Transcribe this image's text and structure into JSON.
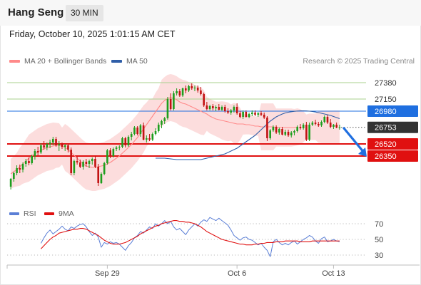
{
  "header": {
    "instrument": "Hang Seng",
    "timeframe": "30 MIN",
    "timestamp": "Friday, October 10, 2025 1:01:15 AM CET"
  },
  "legend": {
    "ma20_label": "MA 20 + Bollinger Bands",
    "ma50_label": "MA 50",
    "copyright": "Research © 2025 Trading Central",
    "rsi_label": "RSI",
    "rsi9_label": "9MA"
  },
  "colors": {
    "ma20": "#ff8a8a",
    "ma50": "#2f5ea8",
    "bollinger_fill": "#fcd7d7",
    "up_candle": "#1e9e1e",
    "down_candle": "#c21212",
    "support": "#e01010",
    "pivot": "#1f6fe0",
    "resistance": "#a9d18e",
    "last_price": "#333333",
    "rsi": "#5b7fd6",
    "rsi9": "#e01010"
  },
  "chart_data": [
    {
      "type": "candlestick",
      "y_range": [
        25820,
        27580
      ],
      "x_labels": [
        "Sep 29",
        "Oct 6",
        "Oct 13"
      ],
      "levels": [
        {
          "value": 27380,
          "kind": "resistance",
          "label": "27380"
        },
        {
          "value": 27150,
          "kind": "resistance",
          "label": "27150"
        },
        {
          "value": 26980,
          "kind": "pivot",
          "label": "26980"
        },
        {
          "value": 26753,
          "kind": "last",
          "label": "26753"
        },
        {
          "value": 26520,
          "kind": "support",
          "label": "26520"
        },
        {
          "value": 26350,
          "kind": "support",
          "label": "26350"
        }
      ],
      "arrow": {
        "from": 26740,
        "to": 26350,
        "direction": "down"
      },
      "candles": [
        [
          25920,
          26040,
          25880,
          26030
        ],
        [
          26030,
          26130,
          25990,
          26110
        ],
        [
          26110,
          26220,
          26080,
          26180
        ],
        [
          26180,
          26230,
          26110,
          26160
        ],
        [
          26160,
          26260,
          26120,
          26240
        ],
        [
          26240,
          26310,
          26200,
          26280
        ],
        [
          26280,
          26330,
          26220,
          26250
        ],
        [
          26250,
          26370,
          26230,
          26350
        ],
        [
          26350,
          26450,
          26300,
          26420
        ],
        [
          26420,
          26480,
          26360,
          26400
        ],
        [
          26400,
          26530,
          26380,
          26500
        ],
        [
          26500,
          26560,
          26440,
          26470
        ],
        [
          26470,
          26540,
          26430,
          26520
        ],
        [
          26520,
          26580,
          26460,
          26540
        ],
        [
          26540,
          26620,
          26500,
          26590
        ],
        [
          26590,
          26620,
          26480,
          26500
        ],
        [
          26500,
          26560,
          26420,
          26520
        ],
        [
          26520,
          26540,
          26450,
          26480
        ],
        [
          26480,
          26520,
          26420,
          26500
        ],
        [
          26500,
          26520,
          26400,
          26440
        ],
        [
          26440,
          26470,
          26080,
          26110
        ],
        [
          26110,
          26300,
          26080,
          26280
        ],
        [
          26280,
          26340,
          26230,
          26260
        ],
        [
          26260,
          26300,
          26180,
          26200
        ],
        [
          26200,
          26290,
          26160,
          26270
        ],
        [
          26270,
          26310,
          26200,
          26240
        ],
        [
          26240,
          26300,
          26180,
          26280
        ],
        [
          26280,
          26330,
          26230,
          26310
        ],
        [
          26310,
          26350,
          26180,
          26200
        ],
        [
          26200,
          26240,
          25930,
          25970
        ],
        [
          25970,
          26120,
          25960,
          26100
        ],
        [
          26100,
          26270,
          26080,
          26250
        ],
        [
          26250,
          26450,
          26230,
          26430
        ],
        [
          26430,
          26460,
          26320,
          26350
        ],
        [
          26350,
          26470,
          26330,
          26450
        ],
        [
          26450,
          26490,
          26420,
          26470
        ],
        [
          26470,
          26500,
          26430,
          26480
        ],
        [
          26480,
          26620,
          26460,
          26600
        ],
        [
          26600,
          26620,
          26470,
          26500
        ],
        [
          26500,
          26640,
          26480,
          26620
        ],
        [
          26620,
          26690,
          26570,
          26660
        ],
        [
          26660,
          26770,
          26640,
          26750
        ],
        [
          26750,
          26770,
          26640,
          26660
        ],
        [
          26660,
          26800,
          26620,
          26780
        ],
        [
          26780,
          26820,
          26570,
          26580
        ],
        [
          26580,
          26640,
          26540,
          26600
        ],
        [
          26600,
          26660,
          26560,
          26580
        ],
        [
          26580,
          26680,
          26560,
          26660
        ],
        [
          26660,
          26740,
          26640,
          26700
        ],
        [
          26700,
          26820,
          26680,
          26790
        ],
        [
          26790,
          26860,
          26740,
          26840
        ],
        [
          26840,
          26900,
          26800,
          26880
        ],
        [
          26880,
          27180,
          26860,
          27150
        ],
        [
          27150,
          27230,
          26990,
          27010
        ],
        [
          27010,
          27260,
          26990,
          27230
        ],
        [
          27230,
          27300,
          27200,
          27260
        ],
        [
          27260,
          27290,
          27180,
          27200
        ],
        [
          27200,
          27310,
          27180,
          27300
        ],
        [
          27300,
          27340,
          27230,
          27270
        ],
        [
          27270,
          27350,
          27250,
          27330
        ],
        [
          27330,
          27370,
          27280,
          27300
        ],
        [
          27300,
          27340,
          27260,
          27310
        ],
        [
          27310,
          27340,
          27240,
          27270
        ],
        [
          27270,
          27320,
          27200,
          27220
        ],
        [
          27220,
          27240,
          27040,
          27060
        ],
        [
          27060,
          27110,
          26990,
          27010
        ],
        [
          27010,
          27070,
          26990,
          27050
        ],
        [
          27050,
          27080,
          26990,
          27020
        ],
        [
          27020,
          27060,
          26980,
          27040
        ],
        [
          27040,
          27080,
          26990,
          27000
        ],
        [
          27000,
          27060,
          26980,
          27040
        ],
        [
          27040,
          27070,
          26960,
          26980
        ],
        [
          26980,
          27020,
          26940,
          26960
        ],
        [
          26960,
          27010,
          26930,
          26990
        ],
        [
          26990,
          27060,
          26960,
          27040
        ],
        [
          27040,
          27090,
          26930,
          26950
        ],
        [
          26950,
          26980,
          26880,
          26900
        ],
        [
          26900,
          26990,
          26870,
          26970
        ],
        [
          26970,
          26990,
          26890,
          26900
        ],
        [
          26900,
          26960,
          26880,
          26940
        ],
        [
          26940,
          26990,
          26910,
          26960
        ],
        [
          26960,
          26990,
          26910,
          26930
        ],
        [
          26930,
          26970,
          26900,
          26950
        ],
        [
          26950,
          26980,
          26910,
          26930
        ],
        [
          26930,
          26960,
          26870,
          26890
        ],
        [
          26890,
          26910,
          26560,
          26600
        ],
        [
          26600,
          26730,
          26580,
          26710
        ],
        [
          26710,
          26780,
          26690,
          26760
        ],
        [
          26760,
          26780,
          26660,
          26680
        ],
        [
          26680,
          26750,
          26650,
          26730
        ],
        [
          26730,
          26760,
          26640,
          26650
        ],
        [
          26650,
          26720,
          26630,
          26690
        ],
        [
          26690,
          26720,
          26620,
          26640
        ],
        [
          26640,
          26700,
          26610,
          26680
        ],
        [
          26680,
          26720,
          26640,
          26700
        ],
        [
          26700,
          26780,
          26680,
          26760
        ],
        [
          26760,
          26800,
          26720,
          26740
        ],
        [
          26740,
          26810,
          26720,
          26790
        ],
        [
          26790,
          26830,
          26560,
          26580
        ],
        [
          26580,
          26820,
          26560,
          26790
        ],
        [
          26790,
          26840,
          26770,
          26820
        ],
        [
          26820,
          26860,
          26780,
          26800
        ],
        [
          26800,
          26830,
          26760,
          26780
        ],
        [
          26780,
          26850,
          26760,
          26830
        ],
        [
          26830,
          26920,
          26810,
          26900
        ],
        [
          26900,
          26930,
          26800,
          26820
        ],
        [
          26820,
          26870,
          26740,
          26760
        ],
        [
          26760,
          26800,
          26730,
          26790
        ],
        [
          26790,
          26820,
          26740,
          26750
        ],
        [
          26750,
          26790,
          26720,
          26753
        ]
      ],
      "series": [
        {
          "name": "MA 20",
          "values": [
            26100,
            26130,
            26160,
            26200,
            26240,
            26280,
            26320,
            26350,
            26380,
            26410,
            26430,
            26450,
            26470,
            26480,
            26490,
            26500,
            26500,
            26490,
            26470,
            26440,
            26400,
            26360,
            26320,
            26280,
            26240,
            26210,
            26200,
            26190,
            26190,
            26200,
            26210,
            26220,
            26240,
            26260,
            26290,
            26320,
            26350,
            26390,
            26430,
            26470,
            26510,
            26560,
            26610,
            26670,
            26730,
            26790,
            26850,
            26910,
            26970,
            27030,
            27090,
            27130,
            27160,
            27170,
            27160,
            27140,
            27110,
            27090,
            27080,
            27060,
            27040,
            27020,
            27000,
            26980,
            26960,
            26940,
            26910,
            26890,
            26870,
            26860,
            26850,
            26840,
            26830,
            26820,
            26810,
            26800,
            26800,
            26800,
            26790,
            26790,
            26780,
            26770,
            26770,
            26760,
            26760,
            26760,
            26760,
            26760,
            26750,
            26750,
            26750,
            26750,
            26750,
            26750,
            26750,
            26760
          ]
        },
        {
          "name": "MA 50",
          "values": [
            26320,
            26320,
            26320,
            26320,
            26315,
            26310,
            26305,
            26300,
            26300,
            26300,
            26300,
            26300,
            26300,
            26300,
            26300,
            26300,
            26310,
            26320,
            26330,
            26340,
            26350,
            26360,
            26370,
            26380,
            26400,
            26420,
            26440,
            26460,
            26490,
            26520,
            26550,
            26580,
            26610,
            26640,
            26680,
            26720,
            26760,
            26800,
            26840,
            26870,
            26900,
            26920,
            26940,
            26955,
            26965,
            26972,
            26978,
            26982,
            26985,
            26985,
            26983,
            26980,
            26975,
            26968,
            26960,
            26950,
            26940,
            26930,
            26920,
            26905,
            26890,
            26875
          ]
        },
        {
          "name": "RSI",
          "values": [
            45,
            52,
            58,
            62,
            57,
            60,
            63,
            67,
            63,
            61,
            66,
            64,
            67,
            69,
            70,
            66,
            60,
            55,
            58,
            53,
            40,
            46,
            44,
            47,
            45,
            46,
            44,
            40,
            36,
            42,
            46,
            52,
            55,
            60,
            58,
            62,
            66,
            64,
            70,
            67,
            70,
            74,
            70,
            73,
            66,
            62,
            64,
            60,
            56,
            62,
            66,
            70,
            67,
            72,
            75,
            73,
            78,
            76,
            74,
            77,
            74,
            71,
            68,
            62,
            55,
            52,
            49,
            52,
            53,
            50,
            49,
            46,
            43,
            45,
            40,
            36,
            28,
            47,
            50,
            46,
            43,
            45,
            43,
            46,
            48,
            44,
            47,
            50,
            52,
            55,
            53,
            48,
            45,
            51,
            53,
            47,
            48,
            50,
            48,
            47
          ]
        },
        {
          "name": "9MA",
          "values": [
            38,
            42,
            46,
            50,
            53,
            55,
            58,
            59,
            60,
            61,
            62,
            63,
            63,
            64,
            64,
            63,
            61,
            59,
            57,
            55,
            52,
            49,
            47,
            45,
            44,
            44,
            44,
            45,
            46,
            48,
            50,
            52,
            54,
            57,
            59,
            61,
            63,
            65,
            67,
            68,
            70,
            71,
            72,
            73,
            74,
            74,
            73,
            73,
            72,
            72,
            71,
            70,
            68,
            66,
            63,
            60,
            58,
            56,
            54,
            52,
            50,
            49,
            48,
            47,
            46,
            45,
            44,
            44,
            43,
            43,
            43,
            44,
            44,
            45,
            45,
            46,
            46,
            46,
            47,
            47,
            47,
            48,
            48,
            48,
            48,
            48,
            47,
            47,
            47,
            47,
            48,
            48,
            48,
            48,
            48,
            48,
            48,
            48,
            48,
            48
          ]
        }
      ]
    },
    {
      "type": "line",
      "name": "RSI panel",
      "y_range": [
        20,
        80
      ],
      "y_ticks": [
        "70",
        "50",
        "30"
      ],
      "x_labels": [
        "Sep 29",
        "Oct 6",
        "Oct 13"
      ]
    }
  ]
}
